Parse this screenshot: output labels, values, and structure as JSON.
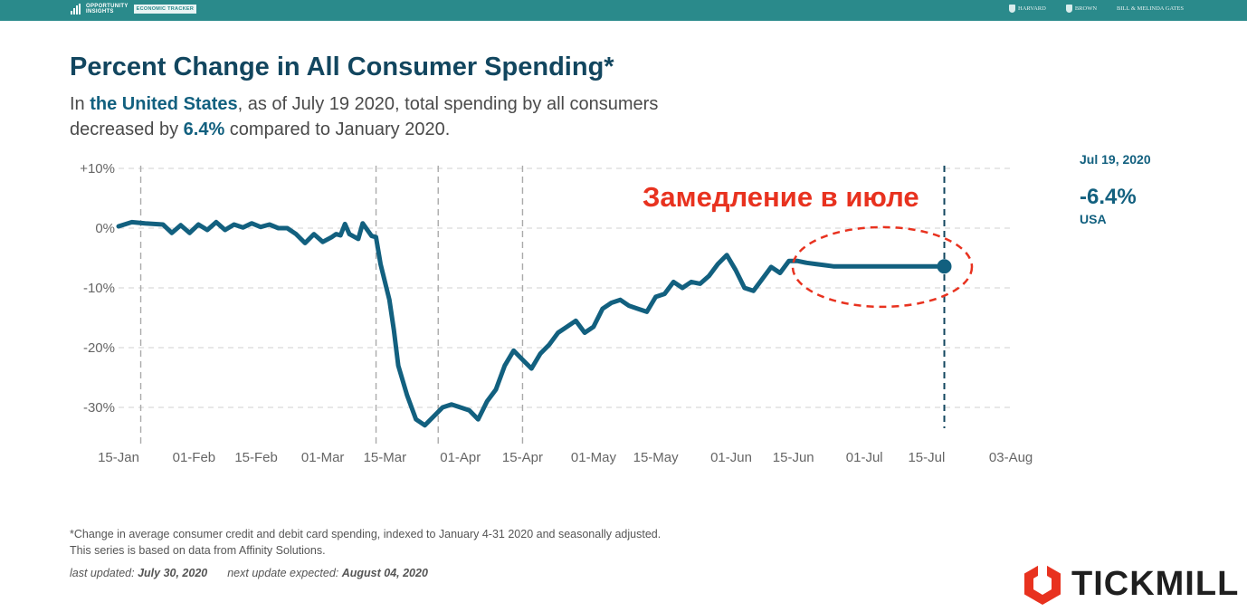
{
  "header": {
    "brand_line1": "OPPORTUNITY",
    "brand_line2": "INSIGHTS",
    "brand_tag": "ECONOMIC TRACKER",
    "partners": [
      "HARVARD",
      "BROWN",
      "BILL & MELINDA GATES"
    ]
  },
  "title": "Percent Change in All Consumer Spending*",
  "subtitle": {
    "p1": "In ",
    "region": "the United States",
    "p2": ", as of July 19 2020, total spending by all consumers decreased by ",
    "value": "6.4%",
    "p3": " compared to January 2020."
  },
  "annotation": "Замедление в июле",
  "readout": {
    "date": "Jul 19, 2020",
    "value": "-6.4%",
    "region": "USA"
  },
  "footnote": {
    "line1": "*Change in average consumer credit and debit card spending, indexed to January 4-31 2020 and seasonally adjusted.",
    "line2": "This series is based on data from Affinity Solutions."
  },
  "updated": {
    "last_label": "last updated:",
    "last_value": "July 30, 2020",
    "next_label": "next update expected:",
    "next_value": "August 04, 2020"
  },
  "logo": {
    "text": "TICKMILL",
    "color": "#e8321f"
  },
  "colors": {
    "line": "#12607f",
    "annotation": "#e8321f",
    "grid": "#d9d9d9",
    "topbar": "#2a8a8b"
  },
  "chart_data": {
    "type": "line",
    "xlabel": "",
    "ylabel": "",
    "ylim": [
      -35,
      10
    ],
    "y_ticks": [
      10,
      0,
      -10,
      -20,
      -30
    ],
    "y_tick_labels": [
      "+10%",
      "0%",
      "-10%",
      "-20%",
      "-30%"
    ],
    "x_ticks": [
      "2020-01-15",
      "2020-02-01",
      "2020-02-15",
      "2020-03-01",
      "2020-03-15",
      "2020-04-01",
      "2020-04-15",
      "2020-05-01",
      "2020-05-15",
      "2020-06-01",
      "2020-06-15",
      "2020-07-01",
      "2020-07-15",
      "2020-08-03"
    ],
    "x_tick_labels": [
      "15-Jan",
      "01-Feb",
      "15-Feb",
      "01-Mar",
      "15-Mar",
      "01-Apr",
      "15-Apr",
      "01-May",
      "15-May",
      "01-Jun",
      "15-Jun",
      "01-Jul",
      "15-Jul",
      "03-Aug"
    ],
    "vertical_markers": [
      "2020-01-20",
      "2020-03-13",
      "2020-03-27",
      "2020-04-15",
      "2020-07-19"
    ],
    "grid": true,
    "series": [
      {
        "x": [
          "2020-01-15",
          "2020-01-18",
          "2020-01-21",
          "2020-01-25",
          "2020-01-27",
          "2020-01-29",
          "2020-01-31",
          "2020-02-02",
          "2020-02-04",
          "2020-02-06",
          "2020-02-08",
          "2020-02-10",
          "2020-02-12",
          "2020-02-14",
          "2020-02-16",
          "2020-02-18",
          "2020-02-20",
          "2020-02-22",
          "2020-02-24",
          "2020-02-26",
          "2020-02-28",
          "2020-03-01",
          "2020-03-03",
          "2020-03-04",
          "2020-03-05",
          "2020-03-06",
          "2020-03-07",
          "2020-03-09",
          "2020-03-10",
          "2020-03-12",
          "2020-03-13",
          "2020-03-14",
          "2020-03-16",
          "2020-03-17",
          "2020-03-18",
          "2020-03-20",
          "2020-03-22",
          "2020-03-24",
          "2020-03-26",
          "2020-03-28",
          "2020-03-30",
          "2020-04-01",
          "2020-04-03",
          "2020-04-05",
          "2020-04-07",
          "2020-04-09",
          "2020-04-11",
          "2020-04-13",
          "2020-04-15",
          "2020-04-17",
          "2020-04-19",
          "2020-04-21",
          "2020-04-23",
          "2020-04-25",
          "2020-04-27",
          "2020-04-29",
          "2020-05-01",
          "2020-05-03",
          "2020-05-05",
          "2020-05-07",
          "2020-05-09",
          "2020-05-11",
          "2020-05-13",
          "2020-05-15",
          "2020-05-17",
          "2020-05-19",
          "2020-05-21",
          "2020-05-23",
          "2020-05-25",
          "2020-05-27",
          "2020-05-29",
          "2020-05-31",
          "2020-06-02",
          "2020-06-04",
          "2020-06-06",
          "2020-06-08",
          "2020-06-10",
          "2020-06-12",
          "2020-06-14",
          "2020-06-16",
          "2020-06-18",
          "2020-06-20",
          "2020-06-22",
          "2020-06-24",
          "2020-06-26",
          "2020-06-28",
          "2020-06-30",
          "2020-07-02",
          "2020-07-03",
          "2020-07-04",
          "2020-07-05",
          "2020-07-07",
          "2020-07-09",
          "2020-07-11",
          "2020-07-13",
          "2020-07-15",
          "2020-07-17",
          "2020-07-19"
        ],
        "y": [
          0.3,
          1.0,
          0.8,
          0.6,
          -0.8,
          0.5,
          -0.8,
          0.6,
          -0.3,
          1.0,
          -0.3,
          0.6,
          0.1,
          0.8,
          0.2,
          0.6,
          0.0,
          0.0,
          -1.0,
          -2.5,
          -1.0,
          -2.3,
          -1.5,
          -1.0,
          -1.2,
          0.7,
          -1.0,
          -1.8,
          0.8,
          -1.3,
          -1.5,
          -6.0,
          -12.0,
          -17.0,
          -23.0,
          -28.0,
          -32.0,
          -33.0,
          -31.5,
          -30.0,
          -29.5,
          -30.0,
          -30.5,
          -32.0,
          -29.0,
          -27.0,
          -23.0,
          -20.5,
          -22.0,
          -23.5,
          -21.0,
          -19.5,
          -17.5,
          -16.5,
          -15.5,
          -17.5,
          -16.5,
          -13.5,
          -12.5,
          -12.0,
          -13.0,
          -13.5,
          -14.0,
          -11.5,
          -11.0,
          -9.0,
          -10.0,
          -9.0,
          -9.3,
          -8.0,
          -6.0,
          -4.5,
          -7.0,
          -10.0,
          -10.5,
          -8.5,
          -6.5,
          -7.5,
          -5.5,
          -5.5,
          -5.8,
          -6.0,
          -6.2,
          -6.4,
          -6.4,
          -6.4,
          -6.4,
          -6.4,
          -6.4,
          -6.4,
          -6.4,
          -6.4,
          -6.4,
          -6.4,
          -6.4,
          -6.4,
          -6.4,
          -6.4
        ],
        "x_end": "2020-07-19",
        "y_end": -6.4
      }
    ]
  }
}
